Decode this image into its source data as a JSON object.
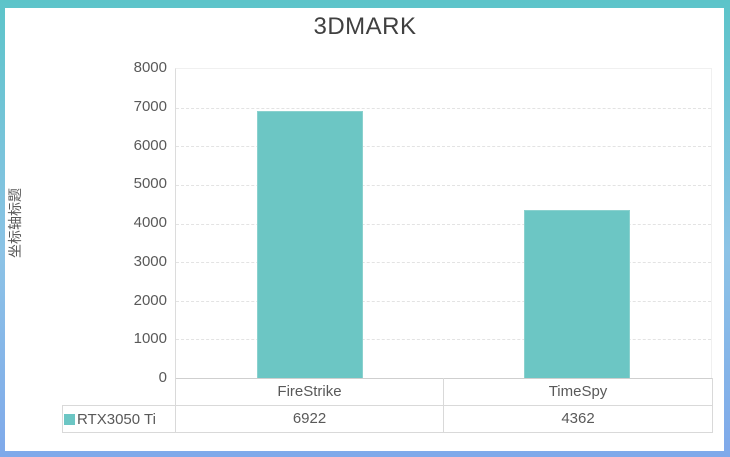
{
  "chart_data": {
    "type": "bar",
    "title": "3DMARK",
    "y_axis_title": "坐标轴标题",
    "categories": [
      "FireStrike",
      "TimeSpy"
    ],
    "series": [
      {
        "name": "RTX3050 Ti",
        "values": [
          6922,
          4362
        ]
      }
    ],
    "ylim": [
      0,
      8000
    ],
    "ytick_interval": 1000,
    "yticks": [
      0,
      1000,
      2000,
      3000,
      4000,
      5000,
      6000,
      7000,
      8000
    ],
    "grid": "horizontal dashed",
    "legend_position": "bottom-left of data table"
  },
  "data_table": {
    "legend_label": "RTX3050 Ti",
    "columns": [
      "FireStrike",
      "TimeSpy"
    ],
    "values": [
      "6922",
      "4362"
    ]
  },
  "colors": {
    "bar_fill": "#6cc6c4",
    "bar_border": "#8ad1ce",
    "legend_swatch": "#6cc6c4",
    "title_text": "#404040",
    "label_text": "#595959",
    "gridline": "#e3e3e3",
    "table_border": "#d9d9d9",
    "frame_gradient_top": "#5cc4c9",
    "frame_gradient_mid": "#8cc3e6",
    "frame_gradient_bottom": "#7fa9ea"
  }
}
